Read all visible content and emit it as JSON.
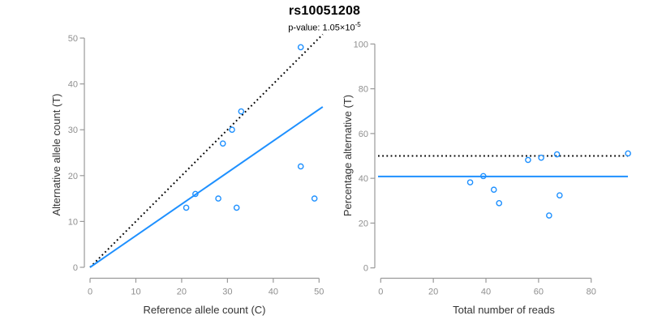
{
  "header": {
    "title": "rs10051208",
    "pvalue_text": "p-value: 1.05×10",
    "pvalue_exponent": "-5"
  },
  "colors": {
    "accent_blue": "#1E90FF",
    "reference_black": "#000000",
    "axis_line": "#999999",
    "tick_label": "#8f8f8f",
    "axis_title": "#333333",
    "title": "#000000",
    "subtitle": "#9b9b9b"
  },
  "chart_data": [
    {
      "type": "scatter",
      "panel": "left",
      "xlabel": "Reference allele count (C)",
      "ylabel": "Alternative allele count (T)",
      "xlim": [
        0,
        50
      ],
      "ylim": [
        0,
        50
      ],
      "xticks": [
        0,
        10,
        20,
        30,
        40,
        50
      ],
      "yticks": [
        0,
        10,
        20,
        30,
        40,
        50
      ],
      "grid": false,
      "legend": "none",
      "point_style": "open-circle",
      "points": [
        [
          21,
          13
        ],
        [
          23,
          16
        ],
        [
          28,
          15
        ],
        [
          29,
          27
        ],
        [
          31,
          30
        ],
        [
          32,
          13
        ],
        [
          33,
          34
        ],
        [
          46,
          22
        ],
        [
          46,
          48
        ],
        [
          49,
          15
        ]
      ],
      "lines": [
        {
          "name": "identity-line",
          "style": "dotted",
          "color": "#000000",
          "x1": 0,
          "y1": 0,
          "x2": 50.8,
          "y2": 50.8
        },
        {
          "name": "fit-line",
          "style": "solid",
          "color": "#1E90FF",
          "x1": 0,
          "y1": 0,
          "x2": 50.8,
          "y2": 35.0
        }
      ]
    },
    {
      "type": "scatter",
      "panel": "right",
      "xlabel": "Total number of reads",
      "ylabel": "Percentage alternative (T)",
      "xlim": [
        0,
        95
      ],
      "ylim": [
        0,
        100
      ],
      "xticks": [
        0,
        20,
        40,
        60,
        80
      ],
      "yticks": [
        0,
        20,
        40,
        60,
        80,
        100
      ],
      "grid": false,
      "legend": "none",
      "point_style": "open-circle",
      "points": [
        [
          34,
          38.2
        ],
        [
          39,
          41.0
        ],
        [
          43,
          34.9
        ],
        [
          45,
          28.9
        ],
        [
          56,
          48.2
        ],
        [
          61,
          49.2
        ],
        [
          64,
          23.4
        ],
        [
          67,
          50.7
        ],
        [
          68,
          32.4
        ],
        [
          94,
          51.1
        ]
      ],
      "lines": [
        {
          "name": "expected-50pct-line",
          "style": "dotted",
          "color": "#000000",
          "h": 50
        },
        {
          "name": "mean-alt-pct-line",
          "style": "solid",
          "color": "#1E90FF",
          "h": 40.8
        }
      ]
    }
  ]
}
